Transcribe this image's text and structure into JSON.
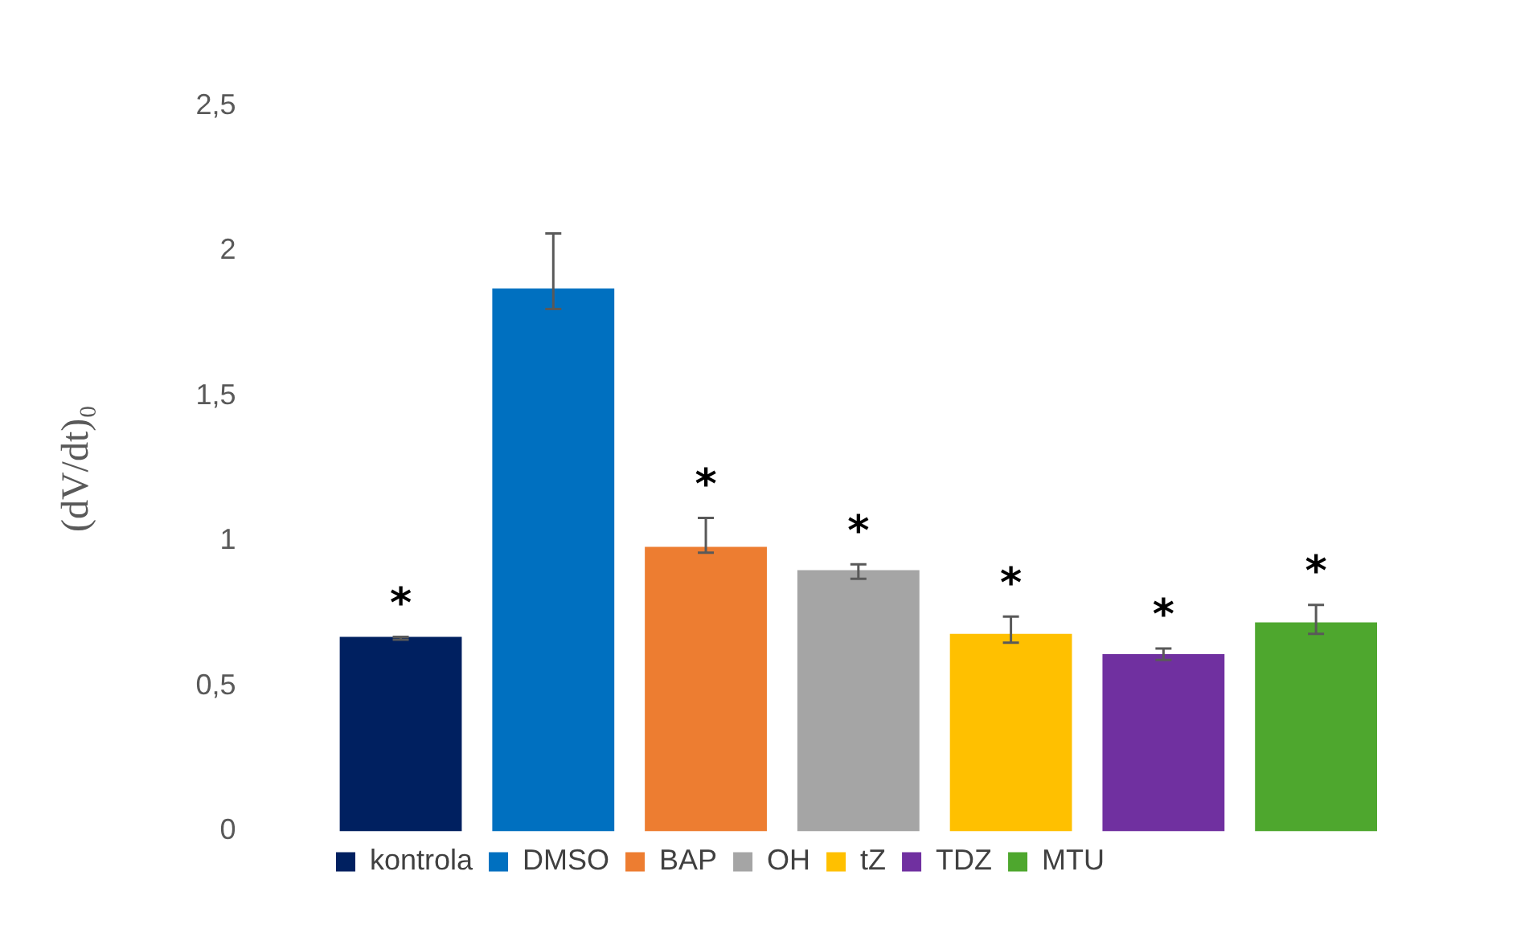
{
  "chart_data": {
    "type": "bar",
    "ylabel": "(dV/dt)₀",
    "categories": [
      null
    ],
    "series": [
      {
        "name": "kontrola",
        "color": "#002060",
        "values": [
          0.67
        ],
        "errors": [
          [
            0.66,
            0.67
          ]
        ],
        "value_labels": [
          "*"
        ]
      },
      {
        "name": "DMSO",
        "color": "#0070c0",
        "values": [
          1.87
        ],
        "errors": [
          [
            1.8,
            2.06
          ]
        ]
      },
      {
        "name": "BAP",
        "color": "#ed7d31",
        "values": [
          0.98
        ],
        "errors": [
          [
            0.96,
            1.08
          ]
        ],
        "value_labels": [
          "*"
        ]
      },
      {
        "name": "OH",
        "color": "#a5a5a5",
        "values": [
          0.9
        ],
        "errors": [
          [
            0.87,
            0.92
          ]
        ],
        "value_labels": [
          "*"
        ]
      },
      {
        "name": "tZ",
        "color": "#ffc000",
        "values": [
          0.68
        ],
        "errors": [
          [
            0.65,
            0.74
          ]
        ],
        "value_labels": [
          "*"
        ]
      },
      {
        "name": "TDZ",
        "color": "#7030a0",
        "values": [
          0.61
        ],
        "errors": [
          [
            0.59,
            0.63
          ]
        ],
        "value_labels": [
          "*"
        ]
      },
      {
        "name": "MTU",
        "color": "#4ea72e",
        "values": [
          0.72
        ],
        "errors": [
          [
            0.68,
            0.78
          ]
        ],
        "value_labels": [
          "*"
        ]
      }
    ],
    "ylim": [
      0,
      2.5
    ],
    "yticks": [
      0,
      {
        "value": 0.5,
        "label": "0,5"
      },
      1,
      {
        "value": 1.5,
        "label": "1,5"
      },
      2,
      {
        "value": 2.5,
        "label": "2,5"
      }
    ],
    "tick_labels": "y",
    "grid": false,
    "legend": "bottom"
  }
}
